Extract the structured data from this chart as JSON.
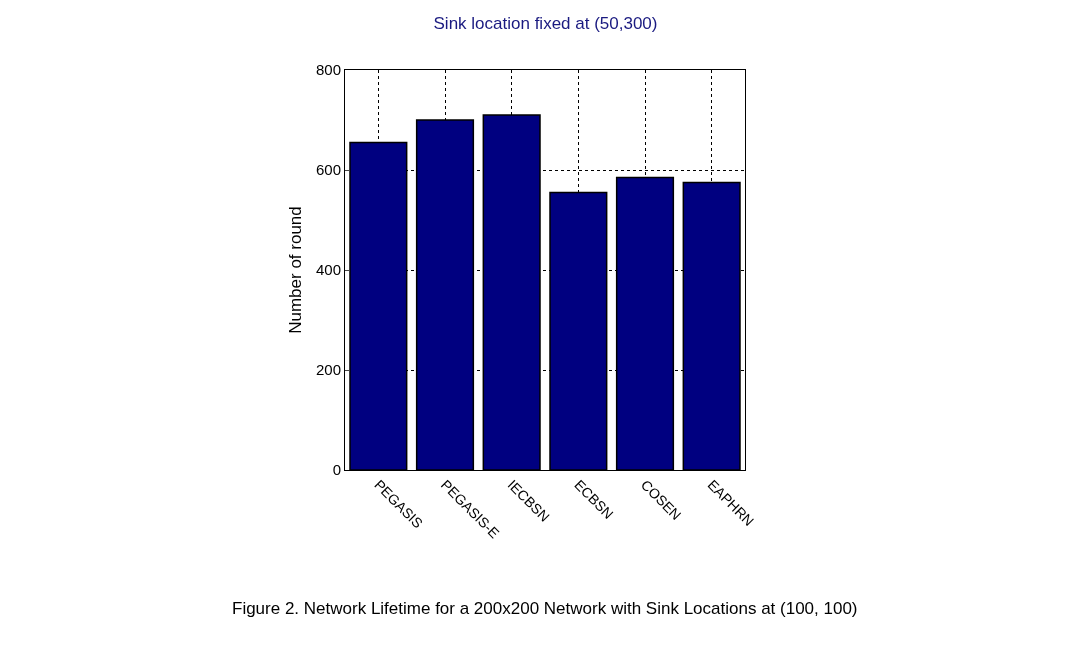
{
  "chart_data": {
    "type": "bar",
    "title": "Sink location fixed at (50,300)",
    "ylabel": "Number of round",
    "categories": [
      "PEGASIS",
      "PEGASIS-E",
      "IECBSN",
      "ECBSN",
      "COSEN",
      "EAPHRN"
    ],
    "values": [
      655,
      700,
      710,
      555,
      585,
      575
    ],
    "color": "#000080",
    "ylim": [
      0,
      800
    ],
    "yticks": [
      0,
      200,
      400,
      600,
      800
    ],
    "grid": true,
    "line_style": "dotted",
    "annotations": [
      "Figure 2. Network Lifetime for a 200x200 Network with Sink Locations at (100, 100)"
    ]
  }
}
